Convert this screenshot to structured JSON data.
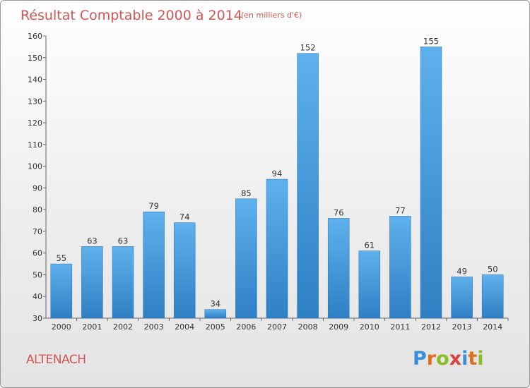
{
  "chart_data": {
    "type": "bar",
    "title": "Résultat Comptable 2000 à 2014",
    "subtitle": "(en milliers d'€)",
    "categories": [
      "2000",
      "2001",
      "2002",
      "2003",
      "2004",
      "2005",
      "2006",
      "2007",
      "2008",
      "2009",
      "2010",
      "2011",
      "2012",
      "2013",
      "2014"
    ],
    "values": [
      55,
      63,
      63,
      79,
      74,
      34,
      85,
      94,
      152,
      76,
      61,
      77,
      155,
      49,
      50
    ],
    "xlabel": "",
    "ylabel": "",
    "ylim": [
      30,
      160
    ],
    "yticks": [
      30,
      40,
      50,
      60,
      70,
      80,
      90,
      100,
      110,
      120,
      130,
      140,
      150,
      160
    ],
    "grid": false,
    "bar_color": "#4d9fdf"
  },
  "location_name": "ALTENACH",
  "logo": {
    "text": "Proxiti",
    "colors": [
      "#3a8fd6",
      "#e0701e",
      "#8dbb2a",
      "#d8423c",
      "#3a8fd6",
      "#e0701e",
      "#8dbb2a"
    ]
  }
}
